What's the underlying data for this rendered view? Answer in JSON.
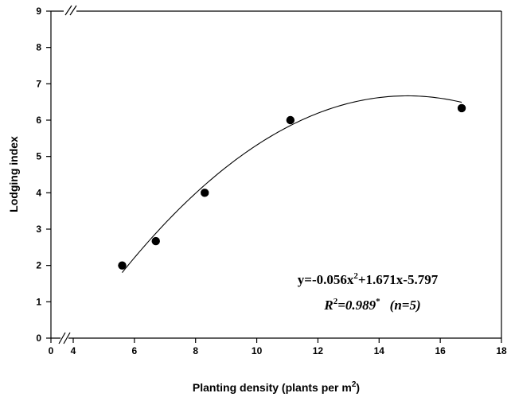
{
  "chart_data": {
    "type": "scatter",
    "xlabel_text": "Planting density (plants per m",
    "xlabel_sup": "2",
    "xlabel_close": ")",
    "ylabel": "Lodging index",
    "x_ticks": [
      "0",
      "4",
      "6",
      "8",
      "10",
      "12",
      "14",
      "16",
      "18"
    ],
    "y_ticks": [
      "0",
      "1",
      "2",
      "3",
      "4",
      "5",
      "6",
      "7",
      "8",
      "9"
    ],
    "xlim": [
      4,
      18
    ],
    "ylim": [
      0,
      9
    ],
    "axis_breaks": true,
    "points": [
      {
        "x": 5.6,
        "y": 2.0
      },
      {
        "x": 6.7,
        "y": 2.67
      },
      {
        "x": 8.3,
        "y": 4.0
      },
      {
        "x": 11.1,
        "y": 6.0
      },
      {
        "x": 16.7,
        "y": 6.33
      }
    ],
    "fit": {
      "type": "quadratic",
      "a": -0.056,
      "b": 1.671,
      "c": -5.797,
      "x_range": [
        5.6,
        16.7
      ]
    },
    "equation": {
      "eq_prefix": "y=-0.056x",
      "eq_sup": "2",
      "eq_suffix": "+1.671x-5.797",
      "r2_R": "R",
      "r2_sup": "2",
      "r2_value": "=0.989",
      "r2_star": "*",
      "n_text": "(n=5)"
    }
  }
}
